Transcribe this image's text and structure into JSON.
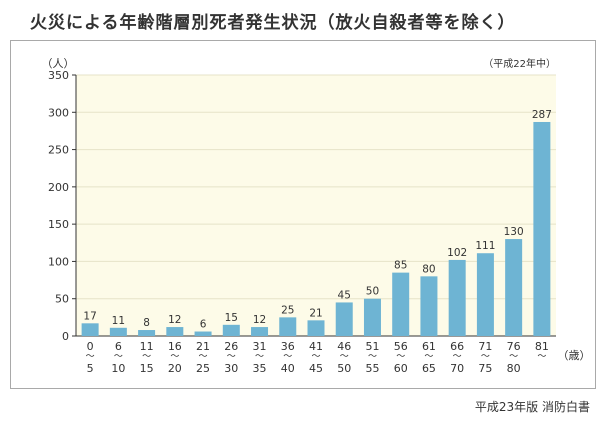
{
  "title": "火災による年齢階層別死者発生状況（放火自殺者等を除く）",
  "source": "平成23年版 消防白書",
  "chart_data": {
    "type": "bar",
    "title": "火災による年齢階層別死者発生状況（放火自殺者等を除く）",
    "note": "（平成22年中）",
    "ylabel": "（人）",
    "xlabel": "（歳）",
    "ylim": [
      0,
      350
    ],
    "yticks": [
      0,
      50,
      100,
      150,
      200,
      250,
      300,
      350
    ],
    "grid": true,
    "categories": [
      {
        "from": "0",
        "to": "5"
      },
      {
        "from": "6",
        "to": "10"
      },
      {
        "from": "11",
        "to": "15"
      },
      {
        "from": "16",
        "to": "20"
      },
      {
        "from": "21",
        "to": "25"
      },
      {
        "from": "26",
        "to": "30"
      },
      {
        "from": "31",
        "to": "35"
      },
      {
        "from": "36",
        "to": "40"
      },
      {
        "from": "41",
        "to": "45"
      },
      {
        "from": "46",
        "to": "50"
      },
      {
        "from": "51",
        "to": "55"
      },
      {
        "from": "56",
        "to": "60"
      },
      {
        "from": "61",
        "to": "65"
      },
      {
        "from": "66",
        "to": "70"
      },
      {
        "from": "71",
        "to": "75"
      },
      {
        "from": "76",
        "to": "80"
      },
      {
        "from": "81",
        "to": ""
      }
    ],
    "values": [
      17,
      11,
      8,
      12,
      6,
      15,
      12,
      25,
      21,
      45,
      50,
      85,
      80,
      102,
      111,
      130,
      287
    ],
    "colors": {
      "bar": "#6eb4d3",
      "plot_bg": "#fdfbe8",
      "grid": "#e6e3c8",
      "axis": "#333333"
    }
  }
}
